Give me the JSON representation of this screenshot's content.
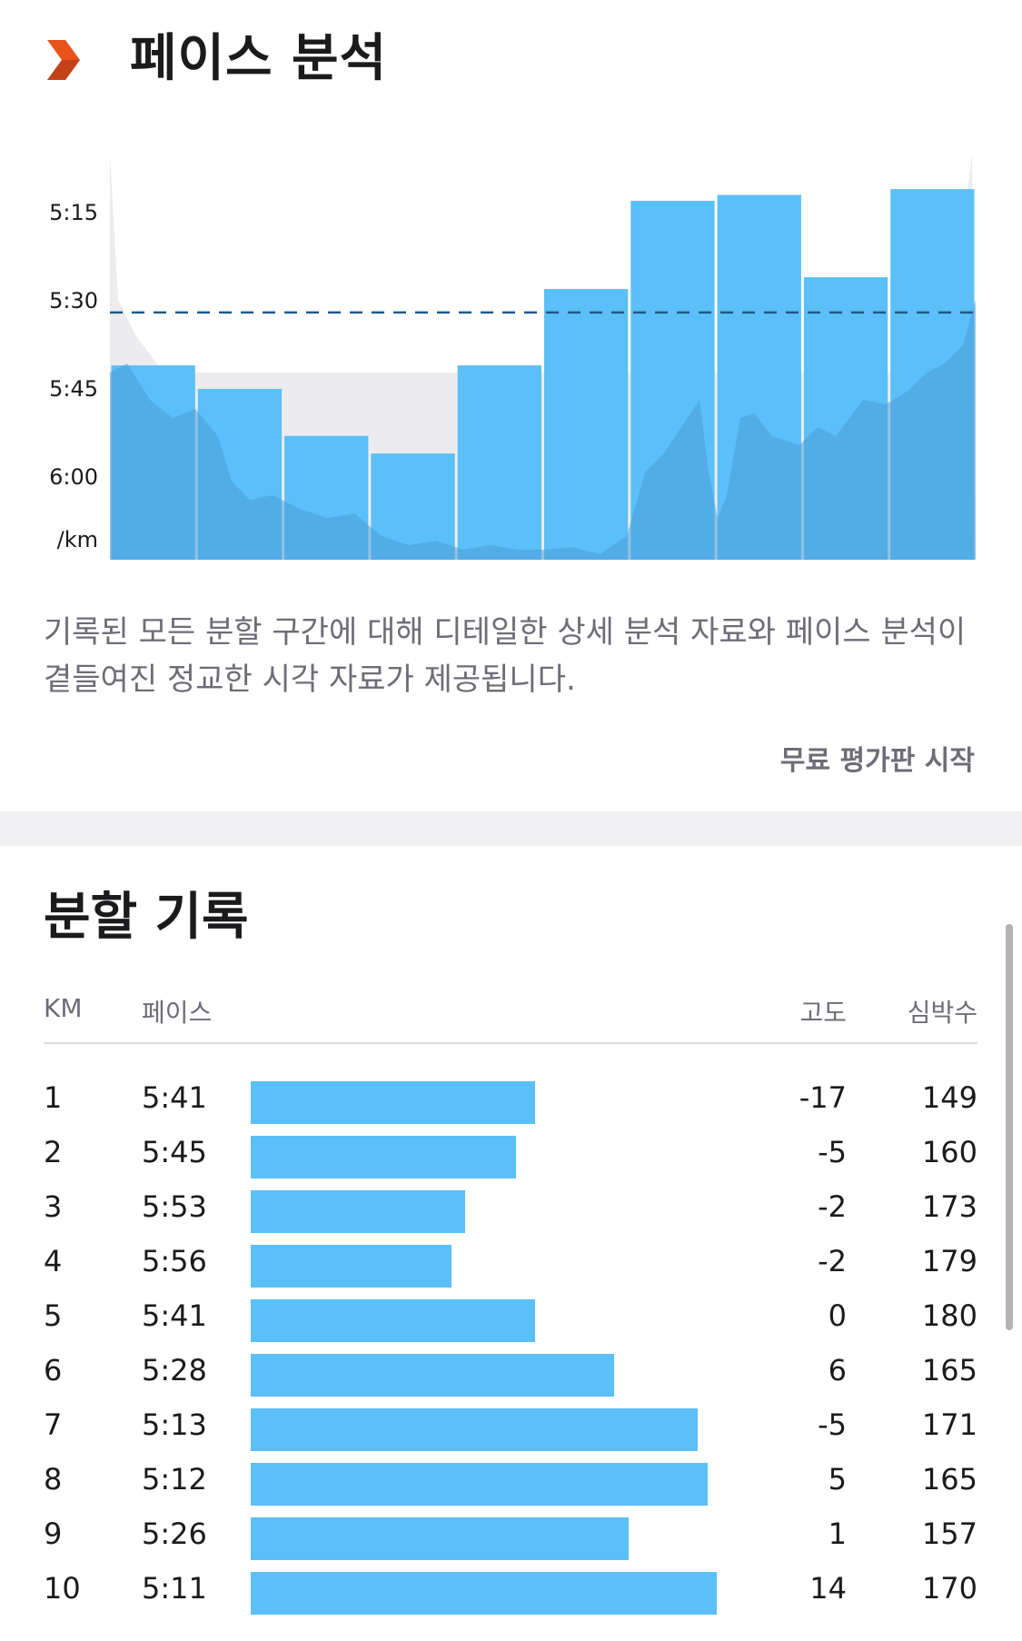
{
  "pace_analysis": {
    "title": "페이스 분석",
    "description": "기록된 모든 분할 구간에 대해 디테일한 상세 분석 자료와 페이스 분석이 곁들여진 정교한 시각 자료가 제공됩니다.",
    "trial_button": "무료 평가판 시작",
    "colors": {
      "bar": "#5bbff8",
      "area": "#4a9fd8",
      "brand": "#e8531c",
      "dashed_line": "#1f5a86"
    }
  },
  "chart_data": {
    "type": "bar",
    "categories": [
      "1",
      "2",
      "3",
      "4",
      "5",
      "6",
      "7",
      "8",
      "9",
      "10"
    ],
    "values": [
      "5:41",
      "5:45",
      "5:53",
      "5:56",
      "5:41",
      "5:28",
      "5:13",
      "5:12",
      "5:26",
      "5:11"
    ],
    "values_seconds_per_km": [
      341,
      345,
      353,
      356,
      341,
      328,
      313,
      312,
      326,
      311
    ],
    "ylabel": "/km",
    "yticks": [
      "5:15",
      "5:30",
      "5:45",
      "6:00"
    ],
    "ylim_seconds": [
      300,
      375
    ],
    "y_axis_inverted": true,
    "average_line": "5:32",
    "average_line_seconds": 332
  },
  "splits": {
    "title": "분할 기록",
    "headers": {
      "km": "KM",
      "pace": "페이스",
      "elevation": "고도",
      "heart_rate": "심박수"
    },
    "rows": [
      {
        "km": "1",
        "pace": "5:41",
        "elevation": "-17",
        "heart_rate": "149",
        "pace_fraction": 0.61
      },
      {
        "km": "2",
        "pace": "5:45",
        "elevation": "-5",
        "heart_rate": "160",
        "pace_fraction": 0.57
      },
      {
        "km": "3",
        "pace": "5:53",
        "elevation": "-2",
        "heart_rate": "173",
        "pace_fraction": 0.46
      },
      {
        "km": "4",
        "pace": "5:56",
        "elevation": "-2",
        "heart_rate": "179",
        "pace_fraction": 0.43
      },
      {
        "km": "5",
        "pace": "5:41",
        "elevation": "0",
        "heart_rate": "180",
        "pace_fraction": 0.61
      },
      {
        "km": "6",
        "pace": "5:28",
        "elevation": "6",
        "heart_rate": "165",
        "pace_fraction": 0.78
      },
      {
        "km": "7",
        "pace": "5:13",
        "elevation": "-5",
        "heart_rate": "171",
        "pace_fraction": 0.96
      },
      {
        "km": "8",
        "pace": "5:12",
        "elevation": "5",
        "heart_rate": "165",
        "pace_fraction": 0.98
      },
      {
        "km": "9",
        "pace": "5:26",
        "elevation": "1",
        "heart_rate": "157",
        "pace_fraction": 0.81
      },
      {
        "km": "10",
        "pace": "5:11",
        "elevation": "14",
        "heart_rate": "170",
        "pace_fraction": 1.0
      }
    ]
  }
}
